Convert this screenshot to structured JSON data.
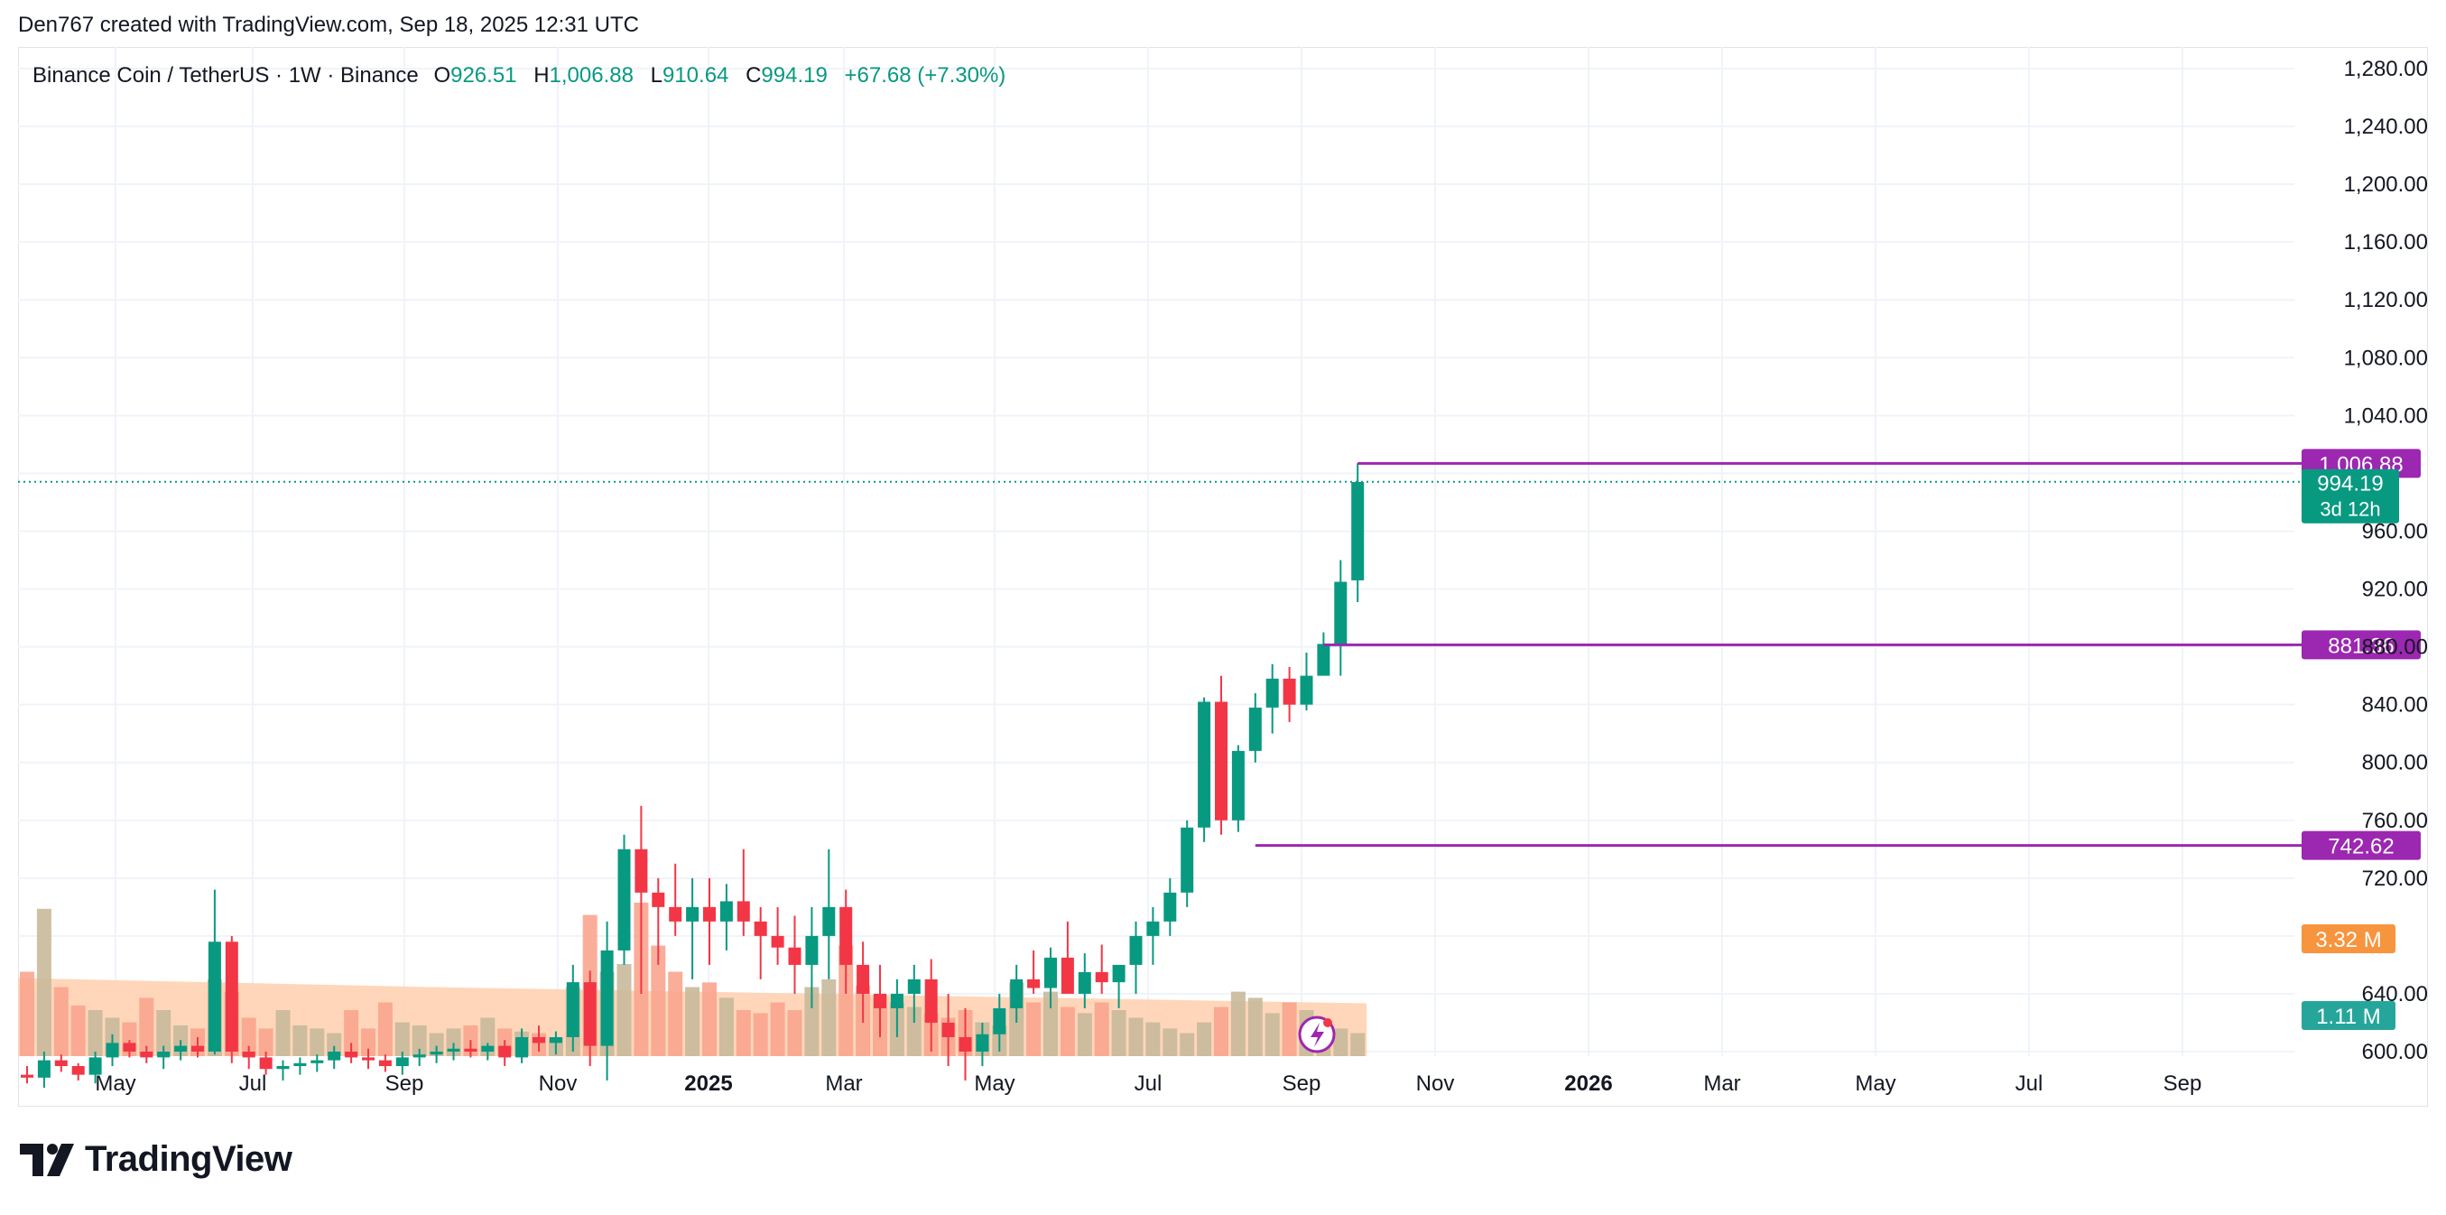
{
  "header": {
    "caption": "Den767 created with TradingView.com, Sep 18, 2025 12:31 UTC"
  },
  "legend": {
    "symbol": "Binance Coin / TetherUS · 1W · Binance",
    "open_label": "O",
    "open": "926.51",
    "high_label": "H",
    "high": "1,006.88",
    "low_label": "L",
    "low": "910.64",
    "close_label": "C",
    "close": "994.19",
    "change": "+67.68 (+7.30%)"
  },
  "footer": {
    "brand": "TradingView"
  },
  "colors": {
    "up": "#089981",
    "down": "#f23645",
    "vol_up": "#c8b99a",
    "vol_down": "#f9a58e",
    "vol_ma_fill": "#ffcfae",
    "level_line": "#9c27b0",
    "grid": "#f0f3fa",
    "price_tag": "#089981",
    "vol_tag": "#f7943e",
    "vol_tag2": "#26a69a"
  },
  "chart_data": {
    "type": "candlestick",
    "timeframe": "1W",
    "y_axis": {
      "min": 600,
      "max": 1280,
      "ticks": [
        "1,280.00",
        "1,240.00",
        "1,200.00",
        "1,160.00",
        "1,120.00",
        "1,080.00",
        "1,040.00",
        "960.00",
        "920.00",
        "880.00",
        "840.00",
        "800.00",
        "760.00",
        "720.00",
        "640.00",
        "600.00"
      ]
    },
    "x_axis": {
      "labels": [
        {
          "text": "May",
          "bold": false
        },
        {
          "text": "Jul",
          "bold": false
        },
        {
          "text": "Sep",
          "bold": false
        },
        {
          "text": "Nov",
          "bold": false
        },
        {
          "text": "2025",
          "bold": true
        },
        {
          "text": "Mar",
          "bold": false
        },
        {
          "text": "May",
          "bold": false
        },
        {
          "text": "Jul",
          "bold": false
        },
        {
          "text": "Sep",
          "bold": false
        },
        {
          "text": "Nov",
          "bold": false
        },
        {
          "text": "2026",
          "bold": true
        },
        {
          "text": "Mar",
          "bold": false
        },
        {
          "text": "May",
          "bold": false
        },
        {
          "text": "Jul",
          "bold": false
        },
        {
          "text": "Sep",
          "bold": false
        }
      ]
    },
    "candles_ohlc": [
      [
        584,
        590,
        578,
        582
      ],
      [
        582,
        600,
        575,
        594
      ],
      [
        594,
        598,
        586,
        590
      ],
      [
        590,
        592,
        580,
        584
      ],
      [
        584,
        600,
        578,
        596
      ],
      [
        596,
        612,
        590,
        606
      ],
      [
        606,
        608,
        596,
        600
      ],
      [
        600,
        604,
        592,
        596
      ],
      [
        596,
        604,
        588,
        600
      ],
      [
        600,
        608,
        594,
        604
      ],
      [
        604,
        610,
        596,
        600
      ],
      [
        600,
        712,
        598,
        676
      ],
      [
        676,
        680,
        592,
        600
      ],
      [
        600,
        604,
        588,
        596
      ],
      [
        596,
        600,
        584,
        588
      ],
      [
        588,
        594,
        580,
        590
      ],
      [
        590,
        596,
        584,
        592
      ],
      [
        592,
        598,
        586,
        594
      ],
      [
        594,
        604,
        588,
        600
      ],
      [
        600,
        606,
        592,
        596
      ],
      [
        596,
        602,
        588,
        594
      ],
      [
        594,
        598,
        586,
        590
      ],
      [
        590,
        600,
        584,
        596
      ],
      [
        596,
        602,
        590,
        598
      ],
      [
        598,
        604,
        592,
        600
      ],
      [
        600,
        606,
        594,
        602
      ],
      [
        602,
        608,
        596,
        600
      ],
      [
        600,
        606,
        594,
        604
      ],
      [
        604,
        608,
        590,
        596
      ],
      [
        596,
        616,
        592,
        610
      ],
      [
        610,
        618,
        600,
        606
      ],
      [
        606,
        614,
        598,
        610
      ],
      [
        610,
        660,
        600,
        648
      ],
      [
        648,
        656,
        590,
        604
      ],
      [
        604,
        690,
        580,
        670
      ],
      [
        670,
        750,
        660,
        740
      ],
      [
        740,
        770,
        640,
        710
      ],
      [
        710,
        720,
        660,
        700
      ],
      [
        700,
        730,
        680,
        690
      ],
      [
        690,
        720,
        650,
        700
      ],
      [
        700,
        720,
        660,
        690
      ],
      [
        690,
        716,
        670,
        704
      ],
      [
        704,
        740,
        680,
        690
      ],
      [
        690,
        700,
        650,
        680
      ],
      [
        680,
        700,
        660,
        672
      ],
      [
        672,
        694,
        640,
        660
      ],
      [
        660,
        700,
        630,
        680
      ],
      [
        680,
        740,
        650,
        700
      ],
      [
        700,
        712,
        640,
        660
      ],
      [
        660,
        676,
        620,
        640
      ],
      [
        640,
        660,
        610,
        630
      ],
      [
        630,
        650,
        610,
        640
      ],
      [
        640,
        660,
        620,
        650
      ],
      [
        650,
        664,
        600,
        620
      ],
      [
        620,
        640,
        590,
        610
      ],
      [
        610,
        630,
        580,
        600
      ],
      [
        600,
        620,
        590,
        612
      ],
      [
        612,
        640,
        600,
        630
      ],
      [
        630,
        660,
        620,
        650
      ],
      [
        650,
        670,
        640,
        644
      ],
      [
        644,
        672,
        630,
        665
      ],
      [
        665,
        690,
        650,
        640
      ],
      [
        640,
        668,
        630,
        655
      ],
      [
        655,
        674,
        640,
        648
      ],
      [
        648,
        660,
        630,
        660
      ],
      [
        660,
        690,
        640,
        680
      ],
      [
        680,
        700,
        660,
        690
      ],
      [
        690,
        720,
        680,
        710
      ],
      [
        710,
        760,
        700,
        755
      ],
      [
        755,
        845,
        745,
        842
      ],
      [
        842,
        860,
        750,
        760
      ],
      [
        760,
        812,
        752,
        808
      ],
      [
        808,
        848,
        800,
        838
      ],
      [
        838,
        868,
        820,
        858
      ],
      [
        858,
        866,
        828,
        840
      ],
      [
        840,
        876,
        836,
        860
      ],
      [
        860,
        890,
        870,
        882
      ],
      [
        882,
        940,
        860,
        925
      ],
      [
        926,
        1007,
        911,
        994
      ]
    ],
    "levels": [
      {
        "label": "1,006.88",
        "value": 1006.88
      },
      {
        "label": "881.36",
        "value": 881.36
      },
      {
        "label": "742.62",
        "value": 742.62
      }
    ],
    "last_price": {
      "label": "994.19",
      "countdown": "3d 12h",
      "value": 994.19
    },
    "volume_tags": [
      {
        "label": "3.32 M",
        "kind": "ma"
      },
      {
        "label": "1.11 M",
        "kind": "last"
      }
    ],
    "volume_bars": [
      0.55,
      0.96,
      0.45,
      0.33,
      0.3,
      0.25,
      0.22,
      0.38,
      0.3,
      0.2,
      0.18,
      0.5,
      0.42,
      0.25,
      0.18,
      0.3,
      0.2,
      0.18,
      0.15,
      0.3,
      0.18,
      0.35,
      0.22,
      0.2,
      0.15,
      0.18,
      0.2,
      0.25,
      0.18,
      0.16,
      0.15,
      0.12,
      0.45,
      0.92,
      0.55,
      0.6,
      1.0,
      0.72,
      0.55,
      0.45,
      0.48,
      0.38,
      0.3,
      0.28,
      0.35,
      0.3,
      0.45,
      0.5,
      0.72,
      0.46,
      0.4,
      0.35,
      0.32,
      0.28,
      0.25,
      0.3,
      0.22,
      0.2,
      0.48,
      0.35,
      0.42,
      0.32,
      0.28,
      0.35,
      0.3,
      0.25,
      0.22,
      0.18,
      0.15,
      0.22,
      0.32,
      0.42,
      0.38,
      0.28,
      0.35,
      0.3,
      0.22,
      0.18,
      0.15
    ],
    "volume_ma_level": 0.5
  }
}
